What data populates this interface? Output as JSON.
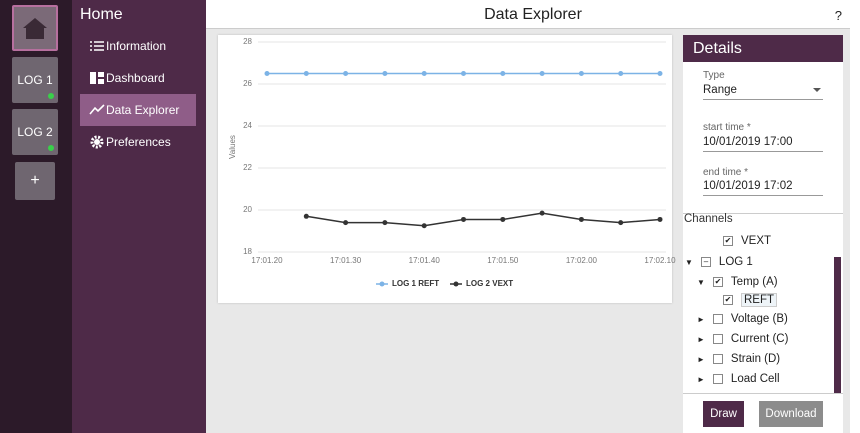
{
  "rail": {
    "logs": [
      "LOG 1",
      "LOG 2"
    ],
    "add": "+"
  },
  "sidebar": {
    "title": "Home",
    "items": [
      "Information",
      "Dashboard",
      "Data Explorer",
      "Preferences"
    ]
  },
  "header": {
    "title": "Data Explorer",
    "help": "?"
  },
  "chart_data": {
    "type": "line",
    "y_label": "Values",
    "categories": [
      "17:01.20",
      null,
      "17:01.30",
      null,
      "17:01.40",
      null,
      "17:01.50",
      null,
      "17:02.00",
      null,
      "17:02.10"
    ],
    "series": [
      {
        "name": "LOG 1 REFT",
        "color": "#7cb3e6",
        "values": [
          26.5,
          26.5,
          26.5,
          26.5,
          26.5,
          26.5,
          26.5,
          26.5,
          26.5,
          26.5,
          26.5
        ]
      },
      {
        "name": "LOG 2 VEXT",
        "color": "#333333",
        "values": [
          null,
          19.7,
          19.4,
          19.4,
          19.25,
          19.55,
          19.55,
          19.85,
          19.55,
          19.4,
          19.55
        ]
      }
    ],
    "ylim": [
      18,
      28
    ],
    "yticks": [
      18,
      20,
      22,
      24,
      26,
      28
    ],
    "grid": true
  },
  "details": {
    "title": "Details",
    "fields": [
      {
        "label": "Type",
        "value": "Range"
      },
      {
        "label": "start time *",
        "value": "10/01/2019 17:00"
      },
      {
        "label": "end time *",
        "value": "10/01/2019 17:02"
      }
    ],
    "channels": {
      "title": "Channels",
      "items": [
        "VEXT",
        "LOG 1",
        "Temp (A)",
        "REFT",
        "Voltage (B)",
        "Current (C)",
        "Strain (D)",
        "Load Cell"
      ]
    },
    "buttons": [
      "Draw",
      "Download"
    ]
  }
}
